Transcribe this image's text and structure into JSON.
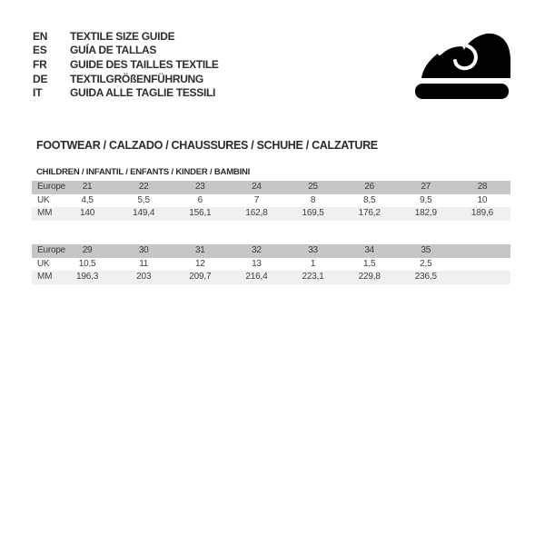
{
  "languages": [
    {
      "code": "EN",
      "label": "TEXTILE SIZE GUIDE"
    },
    {
      "code": "ES",
      "label": "GUÍA DE TALLAS"
    },
    {
      "code": "FR",
      "label": "GUIDE DES TAILLES TEXTILE"
    },
    {
      "code": "DE",
      "label": "TEXTILGRÖßENFÜHRUNG"
    },
    {
      "code": "IT",
      "label": "GUIDA ALLE TAGLIE TESSILI"
    }
  ],
  "icons": {
    "shoe": "children-shoe-icon"
  },
  "section_title": "FOOTWEAR / CALZADO / CHAUSSURES / SCHUHE / CALZATURE",
  "subsection_title": "CHILDREN / INFANTIL / ENFANTS / KINDER / BAMBINI",
  "colors": {
    "header_row": "#c6c6c6",
    "alt_row": "#f0f0f0",
    "text": "#3d3d3d",
    "icon": "#000000",
    "background": "#ffffff"
  },
  "tables": [
    {
      "rows": [
        {
          "label": "Europe",
          "values": [
            "21",
            "22",
            "23",
            "24",
            "25",
            "26",
            "27",
            "28"
          ]
        },
        {
          "label": "UK",
          "values": [
            "4,5",
            "5,5",
            "6",
            "7",
            "8",
            "8,5",
            "9,5",
            "10"
          ]
        },
        {
          "label": "MM",
          "values": [
            "140",
            "149,4",
            "156,1",
            "162,8",
            "169,5",
            "176,2",
            "182,9",
            "189,6"
          ]
        }
      ]
    },
    {
      "rows": [
        {
          "label": "Europe",
          "values": [
            "29",
            "30",
            "31",
            "32",
            "33",
            "34",
            "35",
            ""
          ]
        },
        {
          "label": "UK",
          "values": [
            "10,5",
            "11",
            "12",
            "13",
            "1",
            "1,5",
            "2,5",
            ""
          ]
        },
        {
          "label": "MM",
          "values": [
            "196,3",
            "203",
            "209,7",
            "216,4",
            "223,1",
            "229,8",
            "236,5",
            ""
          ]
        }
      ]
    }
  ]
}
